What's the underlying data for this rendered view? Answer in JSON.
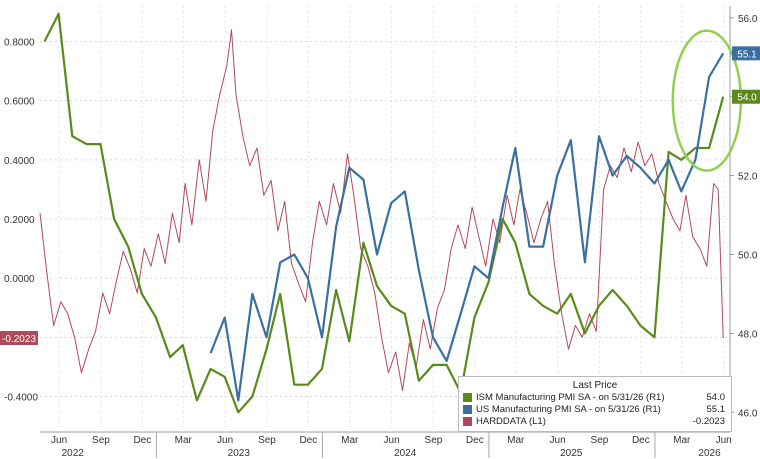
{
  "chart_data": {
    "type": "line",
    "legend": {
      "title": "Last Price",
      "placement": "bottom-right"
    },
    "left_axis": {
      "ticks": [
        "0.8000",
        "0.6000",
        "0.4000",
        "0.2000",
        "0.0000",
        "-0.2000",
        "-0.4000"
      ],
      "tick_values": [
        0.8,
        0.6,
        0.4,
        0.2,
        0.0,
        -0.2,
        -0.4
      ],
      "range": [
        -0.52,
        0.92
      ]
    },
    "right_axis": {
      "ticks": [
        "56.0",
        "54.0",
        "52.0",
        "50.0",
        "48.0",
        "46.0"
      ],
      "tick_values": [
        56,
        54,
        52,
        50,
        48,
        46
      ],
      "range": [
        45.5,
        56.3
      ]
    },
    "x_axis": {
      "months": [
        "Jun",
        "Sep",
        "Dec",
        "Mar",
        "Jun",
        "Sep",
        "Dec",
        "Mar",
        "Jun",
        "Sep",
        "Dec",
        "Mar",
        "Jun",
        "Sep",
        "Dec",
        "Mar",
        "Jun"
      ],
      "month_dates": [
        "2022-06",
        "2022-09",
        "2022-12",
        "2023-03",
        "2023-06",
        "2023-09",
        "2023-12",
        "2024-03",
        "2024-06",
        "2024-09",
        "2024-12",
        "2025-03",
        "2025-06",
        "2025-09",
        "2025-12",
        "2026-03",
        "2026-06"
      ],
      "years": [
        "2022",
        "2023",
        "2024",
        "2025",
        "2026"
      ],
      "year_dates": [
        "2022-07",
        "2023-07",
        "2024-07",
        "2025-07",
        "2026-05"
      ],
      "range": [
        "2022-04-20",
        "2026-06-15"
      ],
      "grid": true
    },
    "series": [
      {
        "name": "ISM Manufacturing PMI SA -  on 5/31/26  (R1)",
        "last_value": "54.0",
        "badge": "54.0",
        "color": "#5a8a1c",
        "axis": "right",
        "points": [
          [
            "2022-04-30",
            55.4
          ],
          [
            "2022-05-31",
            56.1
          ],
          [
            "2022-06-30",
            53.0
          ],
          [
            "2022-07-31",
            52.8
          ],
          [
            "2022-08-31",
            52.8
          ],
          [
            "2022-09-30",
            50.9
          ],
          [
            "2022-10-31",
            50.2
          ],
          [
            "2022-11-30",
            49.0
          ],
          [
            "2022-12-31",
            48.4
          ],
          [
            "2023-01-31",
            47.4
          ],
          [
            "2023-02-28",
            47.7
          ],
          [
            "2023-03-31",
            46.3
          ],
          [
            "2023-04-30",
            47.1
          ],
          [
            "2023-05-31",
            46.9
          ],
          [
            "2023-06-30",
            46.0
          ],
          [
            "2023-07-31",
            46.4
          ],
          [
            "2023-08-31",
            47.6
          ],
          [
            "2023-09-30",
            49.0
          ],
          [
            "2023-10-31",
            46.7
          ],
          [
            "2023-11-30",
            46.7
          ],
          [
            "2023-12-31",
            47.1
          ],
          [
            "2024-01-31",
            49.1
          ],
          [
            "2024-02-29",
            47.8
          ],
          [
            "2024-03-31",
            50.3
          ],
          [
            "2024-04-30",
            49.2
          ],
          [
            "2024-05-31",
            48.7
          ],
          [
            "2024-06-30",
            48.5
          ],
          [
            "2024-07-31",
            46.8
          ],
          [
            "2024-08-31",
            47.2
          ],
          [
            "2024-09-30",
            47.2
          ],
          [
            "2024-10-31",
            46.5
          ],
          [
            "2024-11-30",
            48.4
          ],
          [
            "2024-12-31",
            49.3
          ],
          [
            "2025-01-31",
            50.9
          ],
          [
            "2025-02-28",
            50.3
          ],
          [
            "2025-03-31",
            49.0
          ],
          [
            "2025-04-30",
            48.7
          ],
          [
            "2025-05-31",
            48.5
          ],
          [
            "2025-06-30",
            49.0
          ],
          [
            "2025-07-31",
            48.0
          ],
          [
            "2025-08-31",
            48.7
          ],
          [
            "2025-09-30",
            49.1
          ],
          [
            "2025-10-31",
            48.7
          ],
          [
            "2025-11-30",
            48.2
          ],
          [
            "2025-12-31",
            47.9
          ],
          [
            "2026-01-31",
            52.6
          ],
          [
            "2026-02-28",
            52.4
          ],
          [
            "2026-03-31",
            52.7
          ],
          [
            "2026-04-30",
            52.7
          ],
          [
            "2026-05-31",
            54.0
          ]
        ]
      },
      {
        "name": "US Manufacturing PMI SA -  on 5/31/26  (R1)",
        "last_value": "55.1",
        "badge": "55.1",
        "color": "#3a6fa0",
        "axis": "right",
        "points": [
          [
            "2023-04-30",
            47.5
          ],
          [
            "2023-05-31",
            48.4
          ],
          [
            "2023-06-30",
            46.3
          ],
          [
            "2023-07-31",
            49.0
          ],
          [
            "2023-08-31",
            47.9
          ],
          [
            "2023-09-30",
            49.8
          ],
          [
            "2023-10-31",
            50.0
          ],
          [
            "2023-11-30",
            49.4
          ],
          [
            "2023-12-31",
            47.9
          ],
          [
            "2024-01-31",
            50.7
          ],
          [
            "2024-02-29",
            52.2
          ],
          [
            "2024-03-31",
            51.9
          ],
          [
            "2024-04-30",
            50.0
          ],
          [
            "2024-05-31",
            51.3
          ],
          [
            "2024-06-30",
            51.6
          ],
          [
            "2024-07-31",
            49.6
          ],
          [
            "2024-08-31",
            47.9
          ],
          [
            "2024-09-30",
            47.3
          ],
          [
            "2024-10-31",
            48.5
          ],
          [
            "2024-11-30",
            49.7
          ],
          [
            "2024-12-31",
            49.4
          ],
          [
            "2025-01-31",
            51.2
          ],
          [
            "2025-02-28",
            52.7
          ],
          [
            "2025-03-31",
            50.2
          ],
          [
            "2025-04-30",
            50.2
          ],
          [
            "2025-05-31",
            52.0
          ],
          [
            "2025-06-30",
            52.9
          ],
          [
            "2025-07-31",
            49.8
          ],
          [
            "2025-08-31",
            53.0
          ],
          [
            "2025-09-30",
            52.0
          ],
          [
            "2025-10-31",
            52.5
          ],
          [
            "2025-11-30",
            52.2
          ],
          [
            "2025-12-31",
            51.8
          ],
          [
            "2026-01-31",
            52.4
          ],
          [
            "2026-02-28",
            51.6
          ],
          [
            "2026-03-31",
            52.4
          ],
          [
            "2026-04-30",
            54.5
          ],
          [
            "2026-05-31",
            55.1
          ]
        ]
      },
      {
        "name": "HARDDATA  (L1)",
        "last_value": "-0.2023",
        "badge": "-0.2023",
        "color": "#b04a5a",
        "axis": "left",
        "points": [
          [
            "2022-04-20",
            0.22
          ],
          [
            "2022-05-05",
            0.02
          ],
          [
            "2022-05-20",
            -0.16
          ],
          [
            "2022-06-05",
            -0.08
          ],
          [
            "2022-06-20",
            -0.12
          ],
          [
            "2022-07-05",
            -0.2
          ],
          [
            "2022-07-20",
            -0.32
          ],
          [
            "2022-08-05",
            -0.24
          ],
          [
            "2022-08-20",
            -0.18
          ],
          [
            "2022-09-05",
            -0.05
          ],
          [
            "2022-09-20",
            -0.12
          ],
          [
            "2022-10-05",
            -0.01
          ],
          [
            "2022-10-20",
            0.09
          ],
          [
            "2022-11-05",
            0.03
          ],
          [
            "2022-11-20",
            -0.05
          ],
          [
            "2022-12-05",
            0.1
          ],
          [
            "2022-12-20",
            0.04
          ],
          [
            "2023-01-05",
            0.15
          ],
          [
            "2023-01-20",
            0.05
          ],
          [
            "2023-02-05",
            0.22
          ],
          [
            "2023-02-20",
            0.12
          ],
          [
            "2023-03-05",
            0.32
          ],
          [
            "2023-03-20",
            0.18
          ],
          [
            "2023-04-05",
            0.4
          ],
          [
            "2023-04-20",
            0.26
          ],
          [
            "2023-05-05",
            0.5
          ],
          [
            "2023-05-20",
            0.62
          ],
          [
            "2023-06-05",
            0.72
          ],
          [
            "2023-06-15",
            0.84
          ],
          [
            "2023-06-25",
            0.62
          ],
          [
            "2023-07-10",
            0.48
          ],
          [
            "2023-07-25",
            0.38
          ],
          [
            "2023-08-10",
            0.44
          ],
          [
            "2023-08-25",
            0.28
          ],
          [
            "2023-09-10",
            0.33
          ],
          [
            "2023-09-25",
            0.16
          ],
          [
            "2023-10-10",
            0.26
          ],
          [
            "2023-10-25",
            0.05
          ],
          [
            "2023-11-10",
            -0.02
          ],
          [
            "2023-11-25",
            -0.08
          ],
          [
            "2023-12-10",
            0.12
          ],
          [
            "2023-12-25",
            0.26
          ],
          [
            "2024-01-10",
            0.18
          ],
          [
            "2024-01-25",
            0.32
          ],
          [
            "2024-02-10",
            0.22
          ],
          [
            "2024-02-25",
            0.42
          ],
          [
            "2024-03-10",
            0.28
          ],
          [
            "2024-03-25",
            0.1
          ],
          [
            "2024-04-10",
            0.04
          ],
          [
            "2024-04-25",
            -0.05
          ],
          [
            "2024-05-10",
            -0.2
          ],
          [
            "2024-05-25",
            -0.32
          ],
          [
            "2024-06-10",
            -0.25
          ],
          [
            "2024-06-25",
            -0.38
          ],
          [
            "2024-07-10",
            -0.22
          ],
          [
            "2024-07-25",
            -0.3
          ],
          [
            "2024-08-10",
            -0.14
          ],
          [
            "2024-08-25",
            -0.24
          ],
          [
            "2024-09-10",
            -0.1
          ],
          [
            "2024-09-25",
            -0.04
          ],
          [
            "2024-10-10",
            0.1
          ],
          [
            "2024-10-25",
            0.18
          ],
          [
            "2024-11-10",
            0.1
          ],
          [
            "2024-11-25",
            0.24
          ],
          [
            "2024-12-10",
            0.14
          ],
          [
            "2024-12-25",
            0.04
          ],
          [
            "2025-01-10",
            0.2
          ],
          [
            "2025-01-25",
            0.12
          ],
          [
            "2025-02-10",
            0.28
          ],
          [
            "2025-02-25",
            0.18
          ],
          [
            "2025-03-10",
            0.3
          ],
          [
            "2025-03-25",
            0.22
          ],
          [
            "2025-04-10",
            0.12
          ],
          [
            "2025-04-25",
            0.2
          ],
          [
            "2025-05-10",
            0.26
          ],
          [
            "2025-05-25",
            0.05
          ],
          [
            "2025-06-10",
            -0.12
          ],
          [
            "2025-06-25",
            -0.24
          ],
          [
            "2025-07-10",
            -0.16
          ],
          [
            "2025-07-25",
            -0.2
          ],
          [
            "2025-08-10",
            -0.12
          ],
          [
            "2025-08-25",
            -0.18
          ],
          [
            "2025-09-10",
            0.3
          ],
          [
            "2025-09-25",
            0.38
          ],
          [
            "2025-10-10",
            0.34
          ],
          [
            "2025-10-25",
            0.44
          ],
          [
            "2025-11-10",
            0.36
          ],
          [
            "2025-11-25",
            0.46
          ],
          [
            "2025-12-10",
            0.38
          ],
          [
            "2025-12-25",
            0.42
          ],
          [
            "2026-01-10",
            0.32
          ],
          [
            "2026-01-25",
            0.26
          ],
          [
            "2026-02-10",
            0.2
          ],
          [
            "2026-02-25",
            0.16
          ],
          [
            "2026-03-10",
            0.28
          ],
          [
            "2026-03-25",
            0.14
          ],
          [
            "2026-04-10",
            0.1
          ],
          [
            "2026-04-25",
            0.04
          ],
          [
            "2026-05-10",
            0.32
          ],
          [
            "2026-05-20",
            0.3
          ],
          [
            "2026-05-31",
            -0.2023
          ]
        ]
      }
    ],
    "annotation": {
      "type": "ellipse",
      "color": "#8fd14f",
      "around": "latest readings (Apr–May 2026)"
    }
  }
}
